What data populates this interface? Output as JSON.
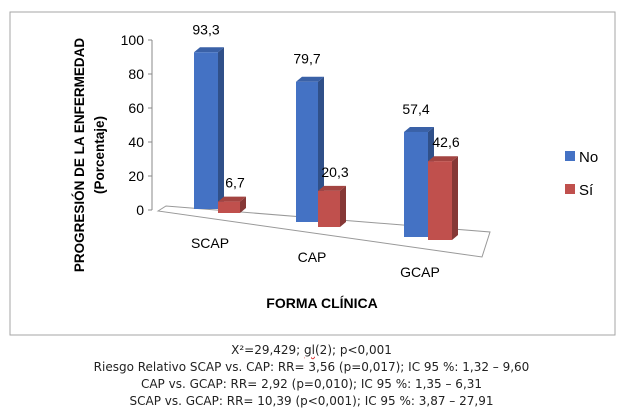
{
  "chart_data": {
    "type": "bar",
    "style": "3d-clustered",
    "categories": [
      "SCAP",
      "CAP",
      "GCAP"
    ],
    "series": [
      {
        "name": "No",
        "values": [
          93.3,
          79.7,
          57.4
        ],
        "labels": [
          "93,3",
          "79,7",
          "57,4"
        ],
        "color": "#4472C4"
      },
      {
        "name": "Sí",
        "values": [
          6.7,
          20.3,
          42.6
        ],
        "labels": [
          "6,7",
          "20,3",
          "42,6"
        ],
        "color": "#C0504D"
      }
    ],
    "xlabel": "FORMA CLÍNICA",
    "ylabel_line1": "PROGRESIÓN DE LA ENFERMEDAD",
    "ylabel_line2": "(Porcentaje)",
    "ylim": [
      0,
      100
    ],
    "yticks": [
      "0",
      "20",
      "40",
      "60",
      "80",
      "100"
    ],
    "legend_position": "right"
  },
  "caption": {
    "line1_pre": "X²=29,429; ",
    "line1_gl": "gl",
    "line1_post": "(2); p<0,001",
    "line2": "Riesgo Relativo SCAP vs. CAP: RR= 3,56 (p=0,017); IC 95 %: 1,32 – 9,60",
    "line3": "CAP vs. GCAP: RR= 2,92 (p=0,010); IC 95 %: 1,35 – 6,31",
    "line4": "SCAP vs. GCAP: RR= 10,39 (p<0,001); IC 95 %: 3,87 – 27,91"
  }
}
